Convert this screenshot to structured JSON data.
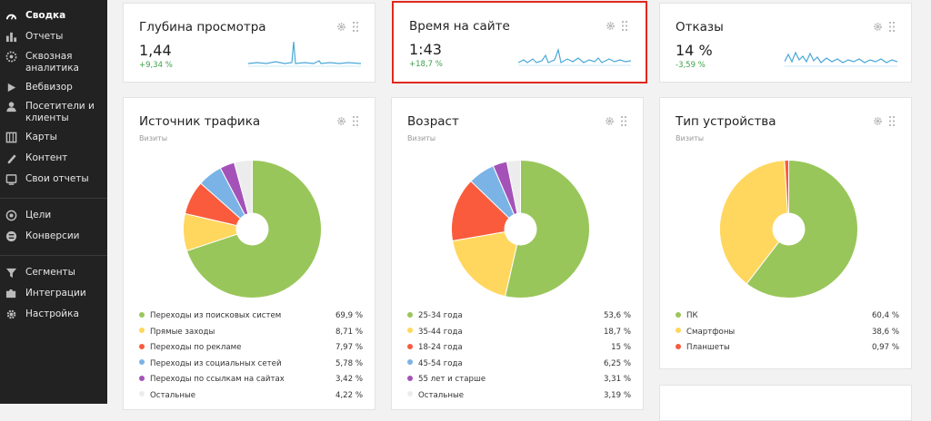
{
  "sidebar": {
    "items": [
      {
        "label": "Сводка",
        "icon": "gauge-icon",
        "active": true
      },
      {
        "label": "Отчеты",
        "icon": "bar-chart-icon"
      },
      {
        "label": "Сквозная аналитика",
        "icon": "through-analytics-icon"
      },
      {
        "label": "Вебвизор",
        "icon": "play-icon"
      },
      {
        "label": "Посетители и клиенты",
        "icon": "person-icon"
      },
      {
        "label": "Карты",
        "icon": "map-icon"
      },
      {
        "label": "Контент",
        "icon": "pencil-icon"
      },
      {
        "label": "Свои отчеты",
        "icon": "custom-report-icon"
      },
      {
        "label": "Цели",
        "icon": "target-icon"
      },
      {
        "label": "Конверсии",
        "icon": "conversion-icon"
      },
      {
        "label": "Сегменты",
        "icon": "funnel-icon"
      },
      {
        "label": "Интеграции",
        "icon": "puzzle-icon"
      },
      {
        "label": "Настройка",
        "icon": "gear-icon"
      }
    ]
  },
  "metrics": [
    {
      "title": "Глубина просмотра",
      "value": "1,44",
      "delta": "+9,34 %",
      "delta_color": "#3d9f4a"
    },
    {
      "title": "Время на сайте",
      "value": "1:43",
      "delta": "+18,7 %",
      "delta_color": "#3d9f4a",
      "highlight_color": "#e0281e"
    },
    {
      "title": "Отказы",
      "value": "14 %",
      "delta": "-3,59 %",
      "delta_color": "#3d9f4a"
    }
  ],
  "pies": [
    {
      "title": "Источник трафика",
      "subtitle": "Визиты",
      "slices": [
        {
          "label": "Переходы из поисковых систем",
          "value": "69,9 %",
          "share": 69.9,
          "color": "#99c65a"
        },
        {
          "label": "Прямые заходы",
          "value": "8,71 %",
          "share": 8.71,
          "color": "#ffd75e"
        },
        {
          "label": "Переходы по рекламе",
          "value": "7,97 %",
          "share": 7.97,
          "color": "#fa5b3d"
        },
        {
          "label": "Переходы из социальных сетей",
          "value": "5,78 %",
          "share": 5.78,
          "color": "#7bb3e6"
        },
        {
          "label": "Переходы по ссылкам на сайтах",
          "value": "3,42 %",
          "share": 3.42,
          "color": "#a552b8"
        },
        {
          "label": "Остальные",
          "value": "4,22 %",
          "share": 4.22,
          "color": "#ececec"
        }
      ]
    },
    {
      "title": "Возраст",
      "subtitle": "Визиты",
      "slices": [
        {
          "label": "25-34 года",
          "value": "53,6 %",
          "share": 53.6,
          "color": "#99c65a"
        },
        {
          "label": "35-44 года",
          "value": "18,7 %",
          "share": 18.7,
          "color": "#ffd75e"
        },
        {
          "label": "18-24 года",
          "value": "15 %",
          "share": 15,
          "color": "#fa5b3d"
        },
        {
          "label": "45-54 года",
          "value": "6,25 %",
          "share": 6.25,
          "color": "#7bb3e6"
        },
        {
          "label": "55 лет и старше",
          "value": "3,31 %",
          "share": 3.31,
          "color": "#a552b8"
        },
        {
          "label": "Остальные",
          "value": "3,19 %",
          "share": 3.19,
          "color": "#ececec"
        }
      ]
    },
    {
      "title": "Тип устройства",
      "subtitle": "Визиты",
      "slices": [
        {
          "label": "ПК",
          "value": "60,4 %",
          "share": 60.4,
          "color": "#99c65a"
        },
        {
          "label": "Смартфоны",
          "value": "38,6 %",
          "share": 38.6,
          "color": "#ffd75e"
        },
        {
          "label": "Планшеты",
          "value": "0,97 %",
          "share": 0.97,
          "color": "#fa5b3d"
        }
      ]
    }
  ]
}
